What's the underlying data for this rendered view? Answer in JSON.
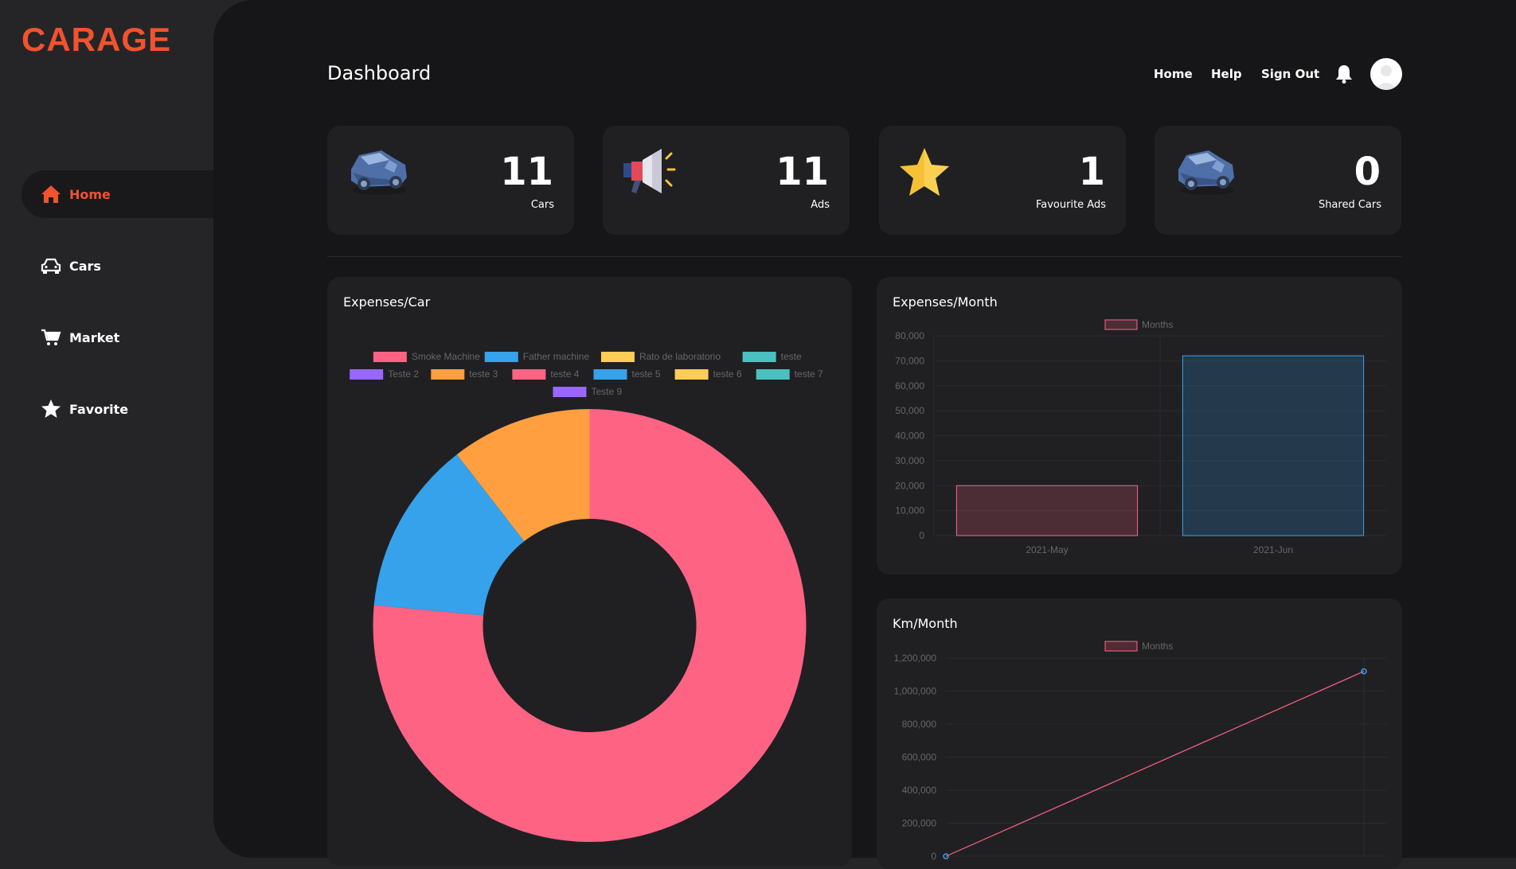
{
  "app": {
    "logo": "CARAGE"
  },
  "sidebar": {
    "items": [
      {
        "label": "Home",
        "icon": "home-icon",
        "active": true
      },
      {
        "label": "Cars",
        "icon": "car-icon",
        "active": false
      },
      {
        "label": "Market",
        "icon": "cart-icon",
        "active": false
      },
      {
        "label": "Favorite",
        "icon": "star-icon",
        "active": false
      }
    ]
  },
  "header": {
    "title": "Dashboard",
    "nav": [
      {
        "label": "Home"
      },
      {
        "label": "Help"
      },
      {
        "label": "Sign Out"
      }
    ],
    "notification_icon": "bell-icon",
    "avatar_icon": "user-avatar-icon"
  },
  "stats": [
    {
      "value": "11",
      "label": "Cars",
      "icon": "car-illustration-icon"
    },
    {
      "value": "11",
      "label": "Ads",
      "icon": "megaphone-icon"
    },
    {
      "value": "1",
      "label": "Favourite Ads",
      "icon": "star-icon"
    },
    {
      "value": "0",
      "label": "Shared Cars",
      "icon": "car-illustration-icon"
    }
  ],
  "colors": {
    "accent": "#f2522e",
    "pink": "#ff6384",
    "blue": "#36a2eb",
    "yellow": "#ffcd56",
    "teal": "#4bc0c0",
    "purple": "#9966ff",
    "orange": "#ff9f40"
  },
  "panels": {
    "expenses_car": {
      "title": "Expenses/Car"
    },
    "expenses_month": {
      "title": "Expenses/Month"
    },
    "km_month": {
      "title": "Km/Month"
    }
  },
  "chart_data": [
    {
      "type": "pie",
      "variant": "doughnut",
      "legend_position": "top",
      "categories": [
        "Smoke Machine",
        "Father machine",
        "Rato de laboratorio",
        "teste",
        "Teste 2",
        "teste 3",
        "teste 4",
        "teste 5",
        "teste 6",
        "teste 7",
        "Teste 9"
      ],
      "colors": [
        "#ff6384",
        "#36a2eb",
        "#ffcd56",
        "#4bc0c0",
        "#9966ff",
        "#ff9f40",
        "#ff6384",
        "#36a2eb",
        "#ffcd56",
        "#4bc0c0",
        "#9966ff"
      ],
      "values": [
        76.5,
        13,
        0,
        0,
        0,
        10.5,
        0,
        0,
        0,
        0,
        0
      ]
    },
    {
      "type": "bar",
      "legend_position": "top",
      "series": [
        {
          "name": "Months",
          "values": [
            20000,
            72000
          ]
        }
      ],
      "categories": [
        "2021-May",
        "2021-Jun"
      ],
      "bar_colors": [
        "#ff6384",
        "#36a2eb"
      ],
      "ylim": [
        0,
        80000
      ],
      "yticks": [
        "0",
        "10,000",
        "20,000",
        "30,000",
        "40,000",
        "50,000",
        "60,000",
        "70,000",
        "80,000"
      ],
      "grid": true
    },
    {
      "type": "line",
      "legend_position": "top",
      "series": [
        {
          "name": "Months",
          "values": [
            0,
            1120000
          ]
        }
      ],
      "ylim": [
        0,
        1200000
      ],
      "yticks": [
        "0",
        "200,000",
        "400,000",
        "600,000",
        "800,000",
        "1,000,000",
        "1,200,000"
      ],
      "grid": true
    }
  ]
}
